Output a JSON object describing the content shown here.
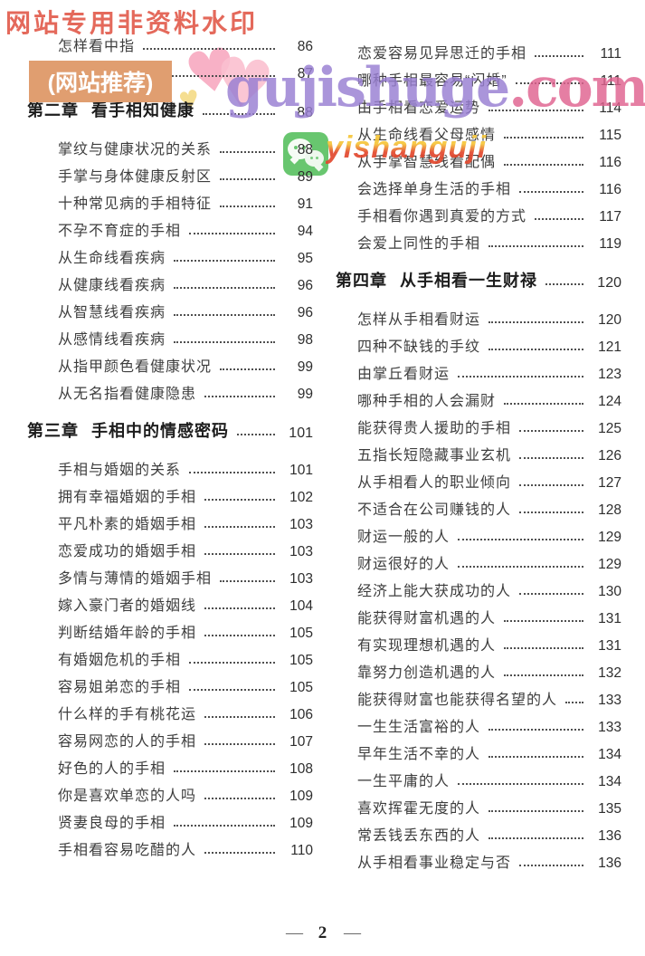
{
  "watermarks": {
    "corner_notice": "网站专用非资料水印",
    "site_badge": "(网站推荐)",
    "logo_main": "gujishuge",
    "logo_tld": ".com",
    "wechat_id": "yishanguji",
    "heart_glyph": "♥"
  },
  "colors": {
    "watermark_red": "#e4695b",
    "badge_bg": "#e09e70",
    "logo_purple": "#987ed2",
    "logo_pink": "#e0628f",
    "wechat_green": "#68c66f",
    "heart_pink": "#f8a9c0",
    "heart_yellow": "#f4d97e"
  },
  "footer": {
    "left_dash": "—",
    "page_number": "2",
    "right_dash": "—"
  },
  "toc": {
    "left_column": [
      {
        "title": "怎样看中指",
        "page": "86"
      },
      {
        "title": "怎样看小拇指",
        "page": "87"
      },
      {
        "label": "第二章",
        "title": "看手相知健康",
        "page": "88"
      },
      {
        "title": "掌纹与健康状况的关系",
        "page": "88"
      },
      {
        "title": "手掌与身体健康反射区",
        "page": "89"
      },
      {
        "title": "十种常见病的手相特征",
        "page": "91"
      },
      {
        "title": "不孕不育症的手相",
        "page": "94"
      },
      {
        "title": "从生命线看疾病",
        "page": "95"
      },
      {
        "title": "从健康线看疾病",
        "page": "96"
      },
      {
        "title": "从智慧线看疾病",
        "page": "96"
      },
      {
        "title": "从感情线看疾病",
        "page": "98"
      },
      {
        "title": "从指甲颜色看健康状况",
        "page": "99"
      },
      {
        "title": "从无名指看健康隐患",
        "page": "99"
      },
      {
        "label": "第三章",
        "title": "手相中的情感密码",
        "page": "101"
      },
      {
        "title": "手相与婚姻的关系",
        "page": "101"
      },
      {
        "title": "拥有幸福婚姻的手相",
        "page": "102"
      },
      {
        "title": "平凡朴素的婚姻手相",
        "page": "103"
      },
      {
        "title": "恋爱成功的婚姻手相",
        "page": "103"
      },
      {
        "title": "多情与薄情的婚姻手相",
        "page": "103"
      },
      {
        "title": "嫁入豪门者的婚姻线",
        "page": "104"
      },
      {
        "title": "判断结婚年龄的手相",
        "page": "105"
      },
      {
        "title": "有婚姻危机的手相",
        "page": "105"
      },
      {
        "title": "容易姐弟恋的手相",
        "page": "105"
      },
      {
        "title": "什么样的手有桃花运",
        "page": "106"
      },
      {
        "title": "容易网恋的人的手相",
        "page": "107"
      },
      {
        "title": "好色的人的手相",
        "page": "108"
      },
      {
        "title": "你是喜欢单恋的人吗",
        "page": "109"
      },
      {
        "title": "贤妻良母的手相",
        "page": "109"
      },
      {
        "title": "手相看容易吃醋的人",
        "page": "110"
      }
    ],
    "right_column": [
      {
        "title": "恋爱容易见异思迁的手相",
        "page": "111"
      },
      {
        "title": "哪种手相最容易“闪婚”",
        "page": "111"
      },
      {
        "title": "由手相看恋爱运势",
        "page": "114"
      },
      {
        "title": "从生命线看父母感情",
        "page": "115"
      },
      {
        "title": "从手掌智慧线看配偶",
        "page": "116"
      },
      {
        "title": "会选择单身生活的手相",
        "page": "116"
      },
      {
        "title": "手相看你遇到真爱的方式",
        "page": "117"
      },
      {
        "title": "会爱上同性的手相",
        "page": "119"
      },
      {
        "label": "第四章",
        "title": "从手相看一生财禄",
        "page": "120"
      },
      {
        "title": "怎样从手相看财运",
        "page": "120"
      },
      {
        "title": "四种不缺钱的手纹",
        "page": "121"
      },
      {
        "title": "由掌丘看财运",
        "page": "123"
      },
      {
        "title": "哪种手相的人会漏财",
        "page": "124"
      },
      {
        "title": "能获得贵人援助的手相",
        "page": "125"
      },
      {
        "title": "五指长短隐藏事业玄机",
        "page": "126"
      },
      {
        "title": "从手相看人的职业倾向",
        "page": "127"
      },
      {
        "title": "不适合在公司赚钱的人",
        "page": "128"
      },
      {
        "title": "财运一般的人",
        "page": "129"
      },
      {
        "title": "财运很好的人",
        "page": "129"
      },
      {
        "title": "经济上能大获成功的人",
        "page": "130"
      },
      {
        "title": "能获得财富机遇的人",
        "page": "131"
      },
      {
        "title": "有实现理想机遇的人",
        "page": "131"
      },
      {
        "title": "靠努力创造机遇的人",
        "page": "132"
      },
      {
        "title": "能获得财富也能获得名望的人",
        "page": "133"
      },
      {
        "title": "一生生活富裕的人",
        "page": "133"
      },
      {
        "title": "早年生活不幸的人",
        "page": "134"
      },
      {
        "title": "一生平庸的人",
        "page": "134"
      },
      {
        "title": "喜欢挥霍无度的人",
        "page": "135"
      },
      {
        "title": "常丢钱丢东西的人",
        "page": "136"
      },
      {
        "title": "从手相看事业稳定与否",
        "page": "136"
      }
    ]
  }
}
